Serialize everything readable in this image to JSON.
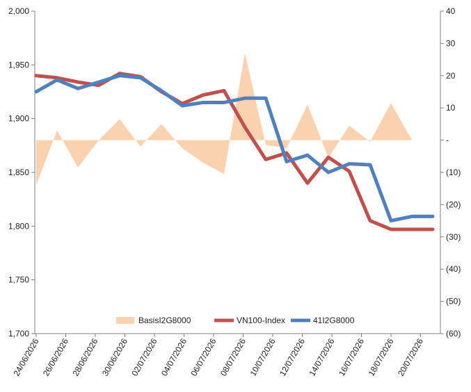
{
  "chart_data": {
    "type": "line",
    "title": "",
    "x": [
      "24/06/2026",
      "25/06/2026",
      "26/06/2026",
      "29/06/2026",
      "30/06/2026",
      "01/07/2026",
      "02/07/2026",
      "03/07/2026",
      "06/07/2026",
      "07/07/2026",
      "08/07/2026",
      "09/07/2026",
      "10/07/2026",
      "13/07/2026",
      "14/07/2026",
      "15/07/2026",
      "16/07/2026",
      "17/07/2026",
      "20/07/2026",
      "21/07/2026"
    ],
    "x_tick_labels": [
      "24/06/2026",
      "26/06/2026",
      "28/06/2026",
      "30/06/2026",
      "02/07/2026",
      "04/07/2026",
      "06/07/2026",
      "08/07/2026",
      "10/07/2026",
      "12/07/2026",
      "14/07/2026",
      "16/07/2026",
      "18/07/2026",
      "20/07/2026"
    ],
    "y_left": {
      "ylim": [
        1700,
        2000
      ],
      "ticks": [
        "1,700",
        "1,750",
        "1,800",
        "1,850",
        "1,900",
        "1,950",
        "2,000"
      ]
    },
    "y_right": {
      "ylim": [
        -60,
        40
      ],
      "ticks": [
        "(60)",
        "(50)",
        "(40)",
        "(30)",
        "(20)",
        "(10)",
        "-",
        "10",
        "20",
        "30",
        "40"
      ]
    },
    "series": [
      {
        "name": "BasisI2G8000",
        "type": "area",
        "axis": "right",
        "color": "#FBD2B0",
        "values": [
          -14,
          3,
          -8.5,
          0,
          6.5,
          -2,
          5,
          -2.5,
          -7,
          -10.5,
          27,
          -1.5,
          -2.5,
          11,
          -5.5,
          4.5,
          -0.5,
          11.5,
          0,
          0
        ]
      },
      {
        "name": "VN100-Index",
        "type": "line",
        "axis": "left",
        "color": "#C0504D",
        "values": [
          1940,
          1938,
          1934,
          1931,
          1942,
          1939,
          1925,
          1914,
          1922,
          1926,
          1892,
          1862,
          1868,
          1840,
          1864,
          1851,
          1805,
          1797,
          1797,
          1797
        ]
      },
      {
        "name": "41I2G8000",
        "type": "line",
        "axis": "left",
        "color": "#4F81BD",
        "values": [
          1925,
          1936,
          1928,
          1934,
          1940,
          1938,
          1926,
          1912,
          1915,
          1915,
          1919,
          1919,
          1860,
          1866,
          1850,
          1858,
          1857,
          1805,
          1809,
          1809
        ]
      }
    ],
    "legend": [
      "BasisI2G8000",
      "VN100-Index",
      "41I2G8000"
    ],
    "legend_position": "bottom-inside",
    "grid": false
  }
}
